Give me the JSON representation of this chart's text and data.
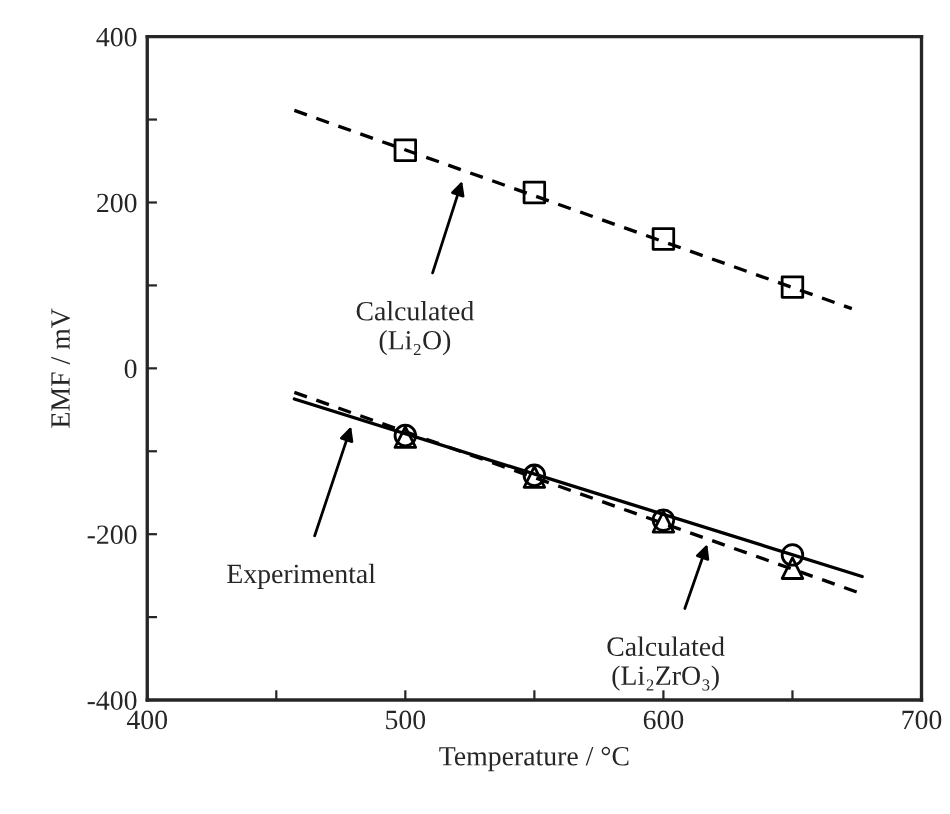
{
  "chart_data": {
    "type": "scatter",
    "xlabel": "Temperature / °C",
    "ylabel": "EMF / mV",
    "xlim": [
      400,
      700
    ],
    "ylim": [
      -400,
      400
    ],
    "xticks": [
      400,
      {
        "value": 450,
        "label": null
      },
      500,
      {
        "value": 550,
        "label": null
      },
      600,
      {
        "value": 650,
        "label": null
      },
      700
    ],
    "yticks": [
      -400,
      {
        "value": -300,
        "label": null
      },
      -200,
      {
        "value": -100,
        "label": null
      },
      0,
      {
        "value": 100,
        "label": null
      },
      200,
      {
        "value": 300,
        "label": null
      },
      400
    ],
    "grid": false,
    "legend": false,
    "series": [
      {
        "marker": "square",
        "color": "#000000",
        "x": [
          500,
          550,
          600,
          650
        ],
        "values": [
          263,
          212,
          156,
          98
        ]
      },
      {
        "type": "line",
        "line_style": "dashed",
        "color": "#000000",
        "x": [
          457,
          673
        ],
        "values": [
          311,
          72
        ]
      },
      {
        "marker": "circle",
        "color": "#000000",
        "x": [
          500,
          550,
          600,
          650
        ],
        "values": [
          -81,
          -129,
          -183,
          -225
        ]
      },
      {
        "marker": "triangle",
        "color": "#000000",
        "x": [
          500,
          550,
          600,
          650
        ],
        "values": [
          -83,
          -131,
          -185,
          -241
        ]
      },
      {
        "type": "line",
        "line_style": "solid",
        "color": "#000000",
        "x": [
          457,
          677
        ],
        "values": [
          -37,
          -251
        ]
      },
      {
        "type": "line",
        "line_style": "dashed",
        "color": "#000000",
        "x": [
          457,
          677
        ],
        "values": [
          -29,
          -272
        ]
      }
    ],
    "annotations": [
      {
        "text": "Calculated\n(Li₂O)",
        "x": 522,
        "y": 226
      },
      {
        "text": "Experimental",
        "x": 479,
        "y": -70
      },
      {
        "text": "Calculated\n(Li₂ZrO₃)",
        "x": 617,
        "y": -212
      }
    ]
  }
}
